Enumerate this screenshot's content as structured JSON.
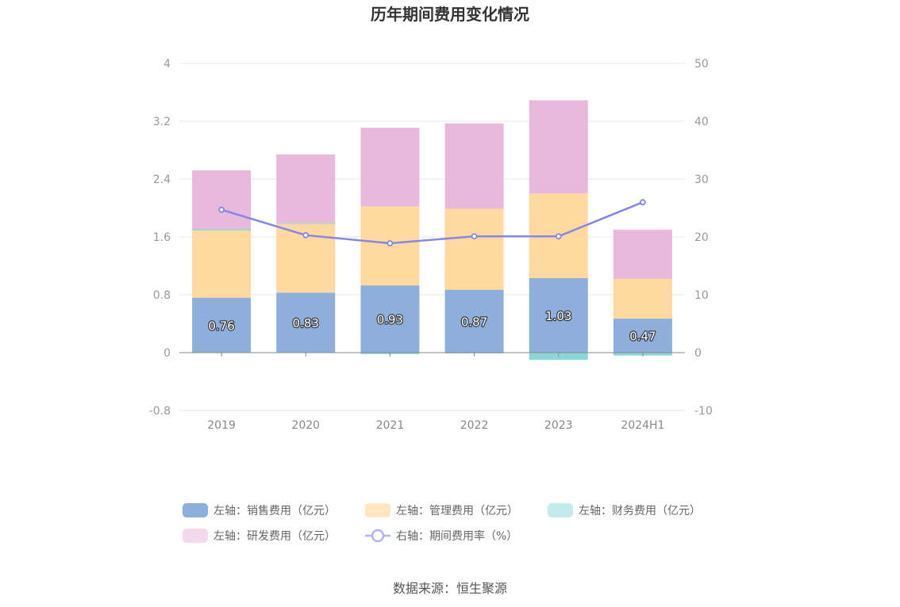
{
  "chart_data": {
    "type": "bar",
    "stacked": true,
    "title": "历年期间费用变化情况",
    "categories": [
      "2019",
      "2020",
      "2021",
      "2022",
      "2023",
      "2024H1"
    ],
    "y_left": {
      "ticks": [
        "4",
        "3.2",
        "2.4",
        "1.6",
        "0.8",
        "0",
        "-0.8"
      ],
      "range": [
        -0.8,
        4
      ]
    },
    "y_right": {
      "ticks": [
        "50",
        "40",
        "30",
        "20",
        "10",
        "0",
        "-10"
      ],
      "range": [
        -10,
        50
      ]
    },
    "series": [
      {
        "name": "左轴：销售费用（亿元）",
        "axis": "left",
        "type": "bar",
        "color": "#8eaedb",
        "values": [
          0.76,
          0.83,
          0.93,
          0.87,
          1.03,
          0.47
        ],
        "labels": [
          "0.76",
          "0.83",
          "0.93",
          "0.87",
          "1.03",
          "0.47"
        ]
      },
      {
        "name": "左轴：管理费用（亿元）",
        "axis": "left",
        "type": "bar",
        "color": "#ffd99e",
        "values": [
          0.93,
          0.95,
          1.09,
          1.12,
          1.17,
          0.55
        ]
      },
      {
        "name": "左轴：财务费用（亿元）",
        "axis": "left",
        "type": "bar",
        "color": "#8bd6d9",
        "values": [
          0.02,
          0.01,
          -0.02,
          -0.01,
          -0.1,
          -0.04
        ]
      },
      {
        "name": "左轴：研发费用（亿元）",
        "axis": "left",
        "type": "bar",
        "color": "#e8b9da",
        "values": [
          0.81,
          0.95,
          1.09,
          1.18,
          1.29,
          0.68
        ]
      },
      {
        "name": "右轴：期间费用率（%）",
        "axis": "right",
        "type": "line",
        "color": "#8486ee",
        "values": [
          24.7,
          20.3,
          18.9,
          20.1,
          20.1,
          26.0
        ]
      }
    ],
    "legend_position": "bottom",
    "legend_colors": [
      "#8eaedb",
      "#ffe7c4",
      "#c3ebeb",
      "#f3d9eb",
      "#b3b4f5"
    ]
  },
  "source": "数据来源：恒生聚源"
}
